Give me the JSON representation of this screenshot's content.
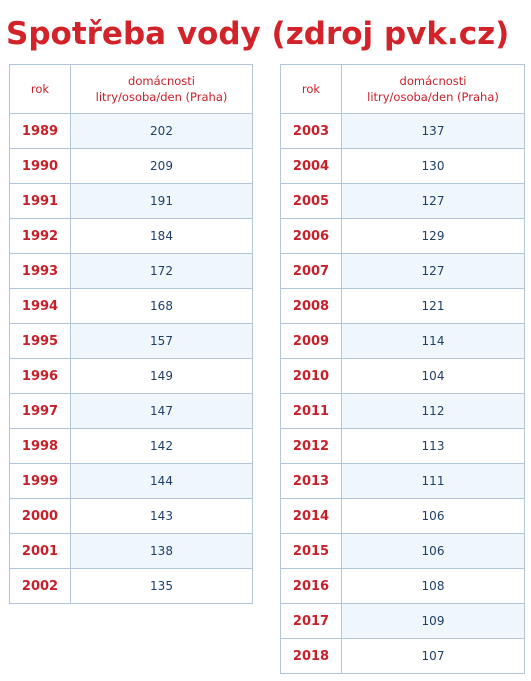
{
  "title": "Spotřeba vody (zdroj pvk.cz)",
  "header": {
    "col1": "rok",
    "col2_line1": "domácnosti",
    "col2_line2": "litry/osoba/den (Praha)"
  },
  "left_rows": [
    {
      "year": "1989",
      "value": "202"
    },
    {
      "year": "1990",
      "value": "209"
    },
    {
      "year": "1991",
      "value": "191"
    },
    {
      "year": "1992",
      "value": "184"
    },
    {
      "year": "1993",
      "value": "172"
    },
    {
      "year": "1994",
      "value": "168"
    },
    {
      "year": "1995",
      "value": "157"
    },
    {
      "year": "1996",
      "value": "149"
    },
    {
      "year": "1997",
      "value": "147"
    },
    {
      "year": "1998",
      "value": "142"
    },
    {
      "year": "1999",
      "value": "144"
    },
    {
      "year": "2000",
      "value": "143"
    },
    {
      "year": "2001",
      "value": "138"
    },
    {
      "year": "2002",
      "value": "135"
    }
  ],
  "right_rows": [
    {
      "year": "2003",
      "value": "137"
    },
    {
      "year": "2004",
      "value": "130"
    },
    {
      "year": "2005",
      "value": "127"
    },
    {
      "year": "2006",
      "value": "129"
    },
    {
      "year": "2007",
      "value": "127"
    },
    {
      "year": "2008",
      "value": "121"
    },
    {
      "year": "2009",
      "value": "114"
    },
    {
      "year": "2010",
      "value": "104"
    },
    {
      "year": "2011",
      "value": "112"
    },
    {
      "year": "2012",
      "value": "113"
    },
    {
      "year": "2013",
      "value": "111"
    },
    {
      "year": "2014",
      "value": "106"
    },
    {
      "year": "2015",
      "value": "106"
    },
    {
      "year": "2016",
      "value": "108"
    },
    {
      "year": "2017",
      "value": "109"
    },
    {
      "year": "2018",
      "value": "107"
    }
  ],
  "colors": {
    "title": "#d2232a",
    "year_text": "#c8202a",
    "value_text": "#1f3f6a",
    "border": "#b3c6d9",
    "row_shade": "#eff7fc"
  }
}
